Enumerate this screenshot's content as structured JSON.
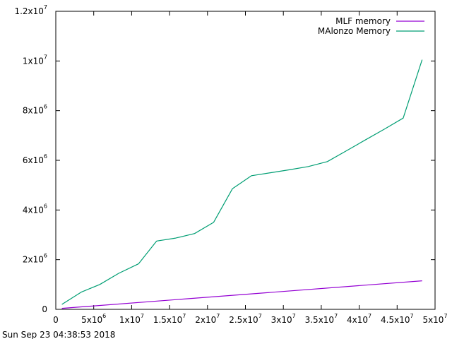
{
  "chart_data": {
    "type": "line",
    "title": "",
    "xlabel": "",
    "ylabel": "",
    "xlim": [
      0,
      50000000
    ],
    "ylim": [
      0,
      12000000
    ],
    "grid": false,
    "legend_position": "top-right",
    "x_ticks": [
      {
        "value": 0,
        "base": "0",
        "exp": ""
      },
      {
        "value": 5000000,
        "base": "5x10",
        "exp": "6"
      },
      {
        "value": 10000000,
        "base": "1x10",
        "exp": "7"
      },
      {
        "value": 15000000,
        "base": "1.5x10",
        "exp": "7"
      },
      {
        "value": 20000000,
        "base": "2x10",
        "exp": "7"
      },
      {
        "value": 25000000,
        "base": "2.5x10",
        "exp": "7"
      },
      {
        "value": 30000000,
        "base": "3x10",
        "exp": "7"
      },
      {
        "value": 35000000,
        "base": "3.5x10",
        "exp": "7"
      },
      {
        "value": 40000000,
        "base": "4x10",
        "exp": "7"
      },
      {
        "value": 45000000,
        "base": "4.5x10",
        "exp": "7"
      },
      {
        "value": 50000000,
        "base": "5x10",
        "exp": "7"
      }
    ],
    "y_ticks": [
      {
        "value": 0,
        "base": "0",
        "exp": ""
      },
      {
        "value": 2000000,
        "base": "2x10",
        "exp": "6"
      },
      {
        "value": 4000000,
        "base": "4x10",
        "exp": "6"
      },
      {
        "value": 6000000,
        "base": "6x10",
        "exp": "6"
      },
      {
        "value": 8000000,
        "base": "8x10",
        "exp": "6"
      },
      {
        "value": 10000000,
        "base": "1x10",
        "exp": "7"
      },
      {
        "value": 12000000,
        "base": "1.2x10",
        "exp": "7"
      }
    ],
    "series": [
      {
        "name": "MLF memory",
        "color": "#9400d3",
        "x": [
          800000,
          48300000
        ],
        "y": [
          40000,
          1150000
        ]
      },
      {
        "name": "MAlonzo Memory",
        "color": "#009e73",
        "x": [
          800000,
          3400000,
          5800000,
          8300000,
          10900000,
          13300000,
          15800000,
          18300000,
          20800000,
          23300000,
          25800000,
          28300000,
          30800000,
          33300000,
          35800000,
          38300000,
          40800000,
          43300000,
          45800000,
          48300000
        ],
        "y": [
          200000,
          700000,
          1000000,
          1450000,
          1830000,
          2750000,
          2870000,
          3050000,
          3500000,
          4860000,
          5380000,
          5500000,
          5620000,
          5750000,
          5950000,
          6380000,
          6820000,
          7250000,
          7700000,
          10050000
        ]
      }
    ]
  },
  "footer": {
    "timestamp": "Sun Sep 23 04:38:53 2018"
  }
}
